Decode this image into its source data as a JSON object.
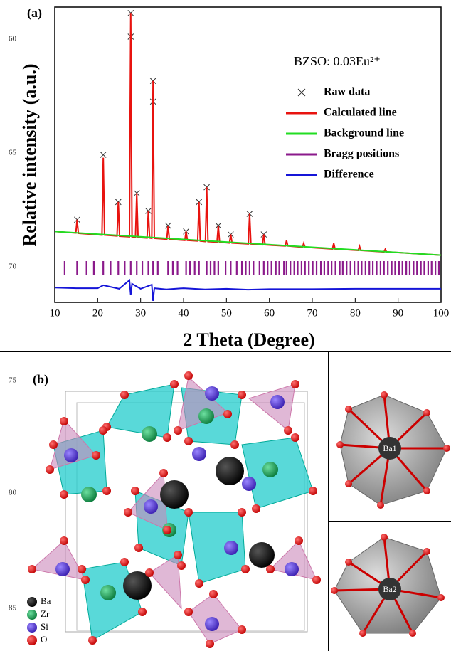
{
  "line_numbers": [
    "60",
    "65",
    "70",
    "75",
    "80",
    "85"
  ],
  "chart_data": {
    "type": "line",
    "panel_label": "(a)",
    "annotation": "BZSO: 0.03Eu²⁺",
    "xlabel": "2 Theta (Degree)",
    "ylabel": "Relative intensity (a.u.)",
    "xlim": [
      10,
      100
    ],
    "xticks": [
      10,
      20,
      30,
      40,
      50,
      60,
      70,
      80,
      90,
      100
    ],
    "ylim": [
      0,
      100
    ],
    "series": [
      {
        "name": "Raw data",
        "color": "#333333",
        "marker": "x",
        "x": [
          15.2,
          21.3,
          24.8,
          27.7,
          27.7,
          29.1,
          31.8,
          32.9,
          32.9,
          36.4,
          40.6,
          43.6,
          45.4,
          48.1,
          51.0,
          55.4,
          58.7
        ],
        "values": [
          28,
          50,
          34,
          98,
          90,
          37,
          31,
          75,
          68,
          26,
          24,
          34,
          39,
          26,
          23,
          30,
          23
        ]
      },
      {
        "name": "Calculated line",
        "color": "#e8130f",
        "x": [
          10,
          14.9,
          15.2,
          15.5,
          21.0,
          21.3,
          21.6,
          24.5,
          24.8,
          25.1,
          27.4,
          27.7,
          28.0,
          28.8,
          29.1,
          29.4,
          31.5,
          31.8,
          32.1,
          32.6,
          32.9,
          33.2,
          36.1,
          36.4,
          36.7,
          40.3,
          40.6,
          40.9,
          43.3,
          43.6,
          43.9,
          45.1,
          45.4,
          45.7,
          47.8,
          48.1,
          48.4,
          50.7,
          51.0,
          51.3,
          55.1,
          55.4,
          55.7,
          58.4,
          58.7,
          59.0,
          63.7,
          64.0,
          64.3,
          67.7,
          68.0,
          68.3,
          74.7,
          75.0,
          75.3,
          80.7,
          81.0,
          81.3,
          86.7,
          87.0,
          87.3,
          100
        ],
        "values": [
          24,
          23.5,
          28,
          23.4,
          22.8,
          49,
          22.8,
          22.5,
          34,
          22.4,
          22.2,
          98,
          22.2,
          22.1,
          37,
          22,
          21.8,
          31,
          21.8,
          21.7,
          75,
          21.7,
          21.4,
          26,
          21.4,
          21,
          24,
          21,
          20.8,
          34,
          20.8,
          20.6,
          39,
          20.6,
          20.4,
          26,
          20.4,
          20.1,
          23,
          20.1,
          19.8,
          30,
          19.8,
          19.5,
          23,
          19.5,
          19.1,
          21,
          19.1,
          18.7,
          20,
          18.7,
          18.1,
          20,
          18.1,
          17.6,
          19,
          17.6,
          17.1,
          18,
          17.1,
          16
        ]
      },
      {
        "name": "Background line",
        "color": "#22dd22",
        "x": [
          10,
          100
        ],
        "values": [
          24,
          16
        ]
      },
      {
        "name": "Bragg positions",
        "color": "#8b1a8b",
        "x": [
          12.3,
          15.2,
          17.4,
          19.1,
          21.3,
          23.0,
          24.8,
          26.3,
          27.7,
          29.1,
          30.4,
          31.8,
          32.9,
          34.0,
          36.4,
          37.5,
          38.6,
          40.6,
          41.5,
          42.6,
          43.6,
          45.4,
          46.3,
          47.2,
          48.1,
          49.8,
          51.0,
          52.4,
          53.6,
          54.5,
          55.4,
          56.3,
          57.7,
          58.7,
          59.6,
          60.5,
          61.5,
          62.3,
          63.4,
          64.0,
          64.9,
          65.8,
          66.6,
          67.5,
          68.3,
          69.2,
          70.1,
          71.0,
          72.0,
          72.8,
          73.7,
          74.5,
          75.4,
          76.4,
          77.1,
          78.0,
          78.9,
          79.8,
          80.7,
          81.5,
          82.4,
          83.3,
          84.1,
          85.0,
          85.9,
          86.7,
          87.6,
          88.5,
          89.3,
          90.2,
          91.0,
          91.9,
          92.7,
          93.6,
          94.4,
          95.3,
          96.1,
          97.0,
          97.8,
          98.7,
          99.5
        ]
      },
      {
        "name": "Difference",
        "color": "#1515d8",
        "x": [
          10,
          15,
          20,
          21.3,
          25,
          27.4,
          27.7,
          28.0,
          30,
          32.6,
          32.9,
          33.2,
          36,
          40,
          45,
          50,
          55,
          60,
          70,
          80,
          90,
          100
        ],
        "values": [
          5.0,
          4.8,
          4.8,
          5.8,
          4.6,
          7.5,
          2.5,
          6.3,
          4.6,
          6.0,
          0.5,
          4.8,
          4.4,
          4.8,
          4.4,
          4.6,
          4.3,
          4.5,
          4.5,
          4.6,
          4.6,
          4.6
        ]
      }
    ]
  },
  "structure": {
    "panel_label": "(b)",
    "legend": [
      "Ba",
      "Zr",
      "Si",
      "O"
    ],
    "sites": [
      "Ba1",
      "Ba2"
    ]
  }
}
